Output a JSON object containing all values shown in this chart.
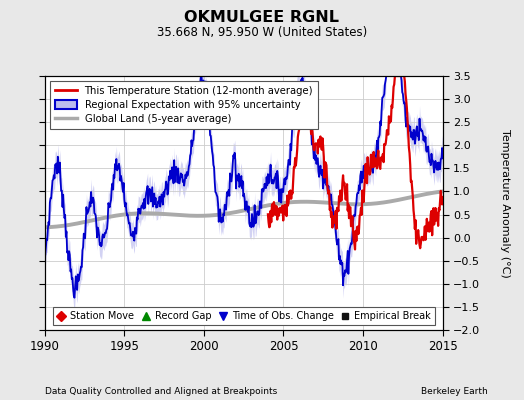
{
  "title": "OKMULGEE RGNL",
  "subtitle": "35.668 N, 95.950 W (United States)",
  "ylabel": "Temperature Anomaly (°C)",
  "xlabel_left": "Data Quality Controlled and Aligned at Breakpoints",
  "xlabel_right": "Berkeley Earth",
  "xlim": [
    1990,
    2015
  ],
  "ylim": [
    -2,
    3.5
  ],
  "yticks": [
    -2,
    -1.5,
    -1,
    -0.5,
    0,
    0.5,
    1,
    1.5,
    2,
    2.5,
    3,
    3.5
  ],
  "xticks": [
    1990,
    1995,
    2000,
    2005,
    2010,
    2015
  ],
  "background_color": "#e8e8e8",
  "plot_bg_color": "#ffffff",
  "grid_color": "#cccccc",
  "red_line_color": "#dd0000",
  "blue_line_color": "#0000cc",
  "blue_fill_color": "#bbbbee",
  "gray_line_color": "#aaaaaa",
  "legend1_items": [
    "This Temperature Station (12-month average)",
    "Regional Expectation with 95% uncertainty",
    "Global Land (5-year average)"
  ],
  "legend2_items": [
    "Station Move",
    "Record Gap",
    "Time of Obs. Change",
    "Empirical Break"
  ],
  "legend2_colors": [
    "#dd0000",
    "#008800",
    "#0000cc",
    "#111111"
  ]
}
